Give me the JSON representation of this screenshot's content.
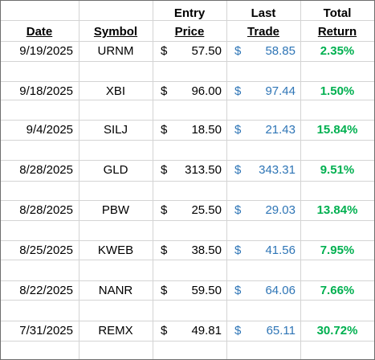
{
  "headers": {
    "date": "Date",
    "symbol": "Symbol",
    "entry_top": "Entry",
    "entry_bottom": "Price",
    "last_top": "Last",
    "last_bottom": "Trade",
    "return_top": "Total",
    "return_bottom": "Return"
  },
  "currency_symbol": "$",
  "colors": {
    "last_trade": "#2e75b6",
    "total_return": "#00b050",
    "grid": "#d4d4d4"
  },
  "rows": [
    {
      "date": "9/19/2025",
      "symbol": "URNM",
      "entry_price": "57.50",
      "last_trade": "58.85",
      "total_return": "2.35%"
    },
    {
      "date": "9/18/2025",
      "symbol": "XBI",
      "entry_price": "96.00",
      "last_trade": "97.44",
      "total_return": "1.50%"
    },
    {
      "date": "9/4/2025",
      "symbol": "SILJ",
      "entry_price": "18.50",
      "last_trade": "21.43",
      "total_return": "15.84%"
    },
    {
      "date": "8/28/2025",
      "symbol": "GLD",
      "entry_price": "313.50",
      "last_trade": "343.31",
      "total_return": "9.51%"
    },
    {
      "date": "8/28/2025",
      "symbol": "PBW",
      "entry_price": "25.50",
      "last_trade": "29.03",
      "total_return": "13.84%"
    },
    {
      "date": "8/25/2025",
      "symbol": "KWEB",
      "entry_price": "38.50",
      "last_trade": "41.56",
      "total_return": "7.95%"
    },
    {
      "date": "8/22/2025",
      "symbol": "NANR",
      "entry_price": "59.50",
      "last_trade": "64.06",
      "total_return": "7.66%"
    },
    {
      "date": "7/31/2025",
      "symbol": "REMX",
      "entry_price": "49.81",
      "last_trade": "65.11",
      "total_return": "30.72%"
    }
  ]
}
